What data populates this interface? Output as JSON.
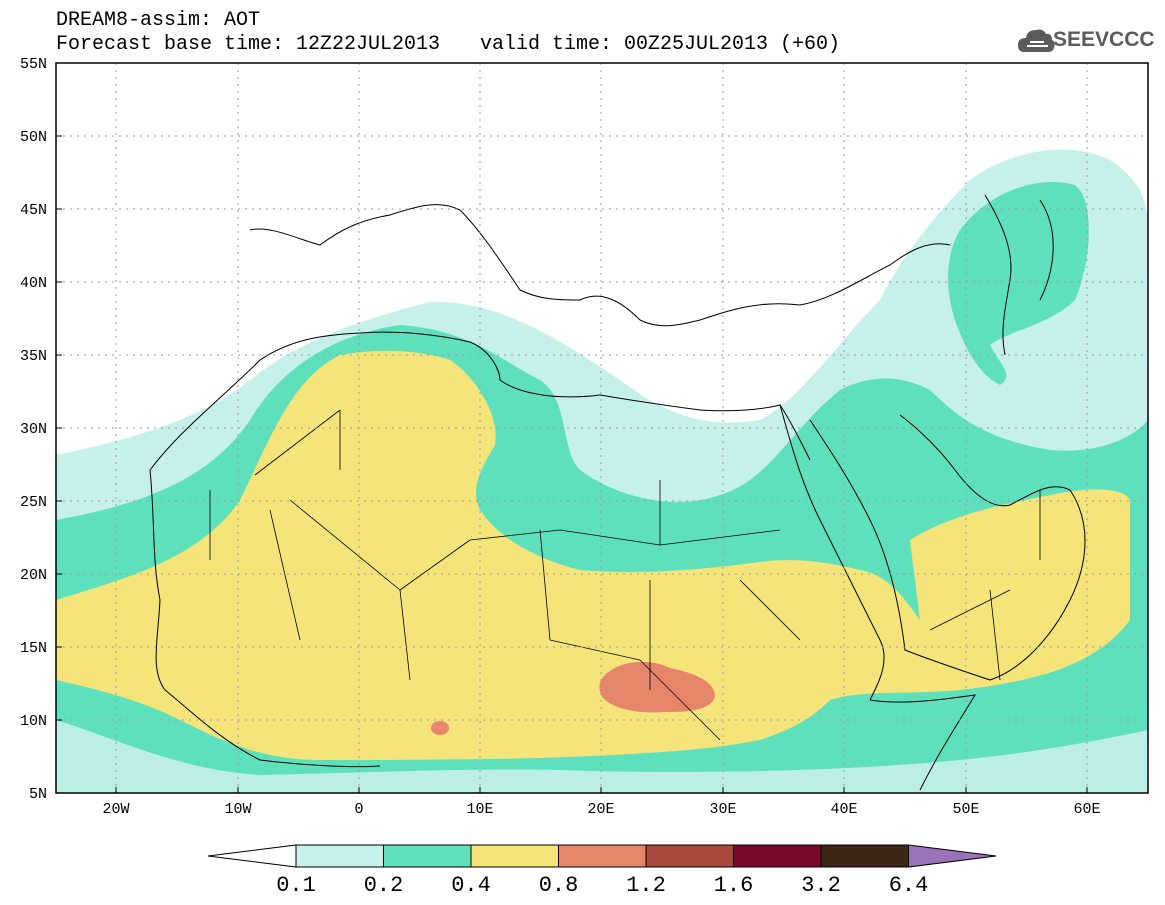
{
  "header": {
    "title": "DREAM8-assim: AOT",
    "base_time": "Forecast base time: 12Z22JUL2013",
    "valid_time": "valid time: 00Z25JUL2013 (+60)"
  },
  "logo": {
    "text": "SEEVCCC",
    "icon": "cloud-icon"
  },
  "axes": {
    "lat_labels": [
      "55N",
      "50N",
      "45N",
      "40N",
      "35N",
      "30N",
      "25N",
      "20N",
      "15N",
      "10N",
      "5N"
    ],
    "lon_labels": [
      "20W",
      "10W",
      "0",
      "10E",
      "20E",
      "30E",
      "40E",
      "50E",
      "60E"
    ]
  },
  "colorbar": {
    "labels": [
      "0.1",
      "0.2",
      "0.4",
      "0.8",
      "1.2",
      "1.6",
      "3.2",
      "6.4"
    ],
    "colors": [
      "#ffffff",
      "#c6f0ea",
      "#5ee0bd",
      "#f5e47a",
      "#e5866a",
      "#a94a3c",
      "#7a0b2c",
      "#3c2618",
      "#9a72b8"
    ]
  },
  "colors": {
    "low": "#c6f0ea",
    "mid": "#5ee0bd",
    "high": "#f5e47a",
    "peak": "#e5866a"
  }
}
